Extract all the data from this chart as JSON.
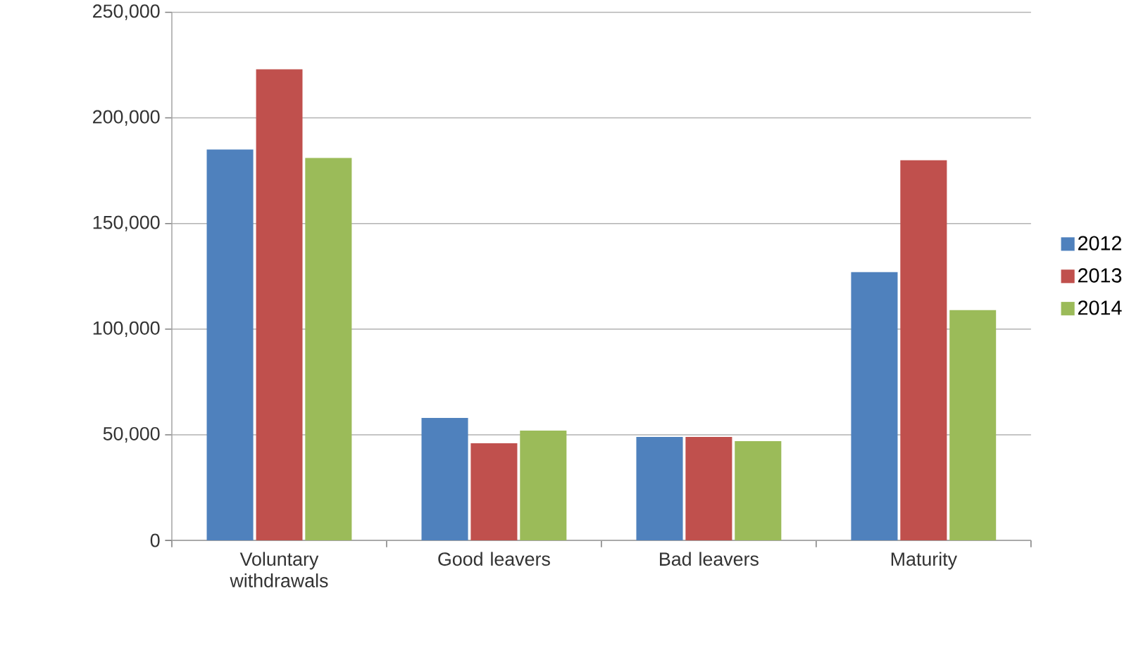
{
  "chart_data": {
    "type": "bar",
    "categories": [
      "Voluntary withdrawals",
      "Good leavers",
      "Bad leavers",
      "Maturity"
    ],
    "series": [
      {
        "name": "2012",
        "color": "#4f81bd",
        "values": [
          185000,
          58000,
          49000,
          127000
        ]
      },
      {
        "name": "2013",
        "color": "#c0504d",
        "values": [
          223000,
          46000,
          49000,
          180000
        ]
      },
      {
        "name": "2014",
        "color": "#9bbb59",
        "values": [
          181000,
          52000,
          47000,
          109000
        ]
      }
    ],
    "ylim": [
      0,
      250000
    ],
    "yticks": [
      {
        "value": 0,
        "label": "0"
      },
      {
        "value": 50000,
        "label": "50,000"
      },
      {
        "value": 100000,
        "label": "100,000"
      },
      {
        "value": 150000,
        "label": "150,000"
      },
      {
        "value": 200000,
        "label": "200,000"
      },
      {
        "value": 250000,
        "label": "250,000"
      }
    ],
    "grid": "y",
    "legend": "right"
  }
}
